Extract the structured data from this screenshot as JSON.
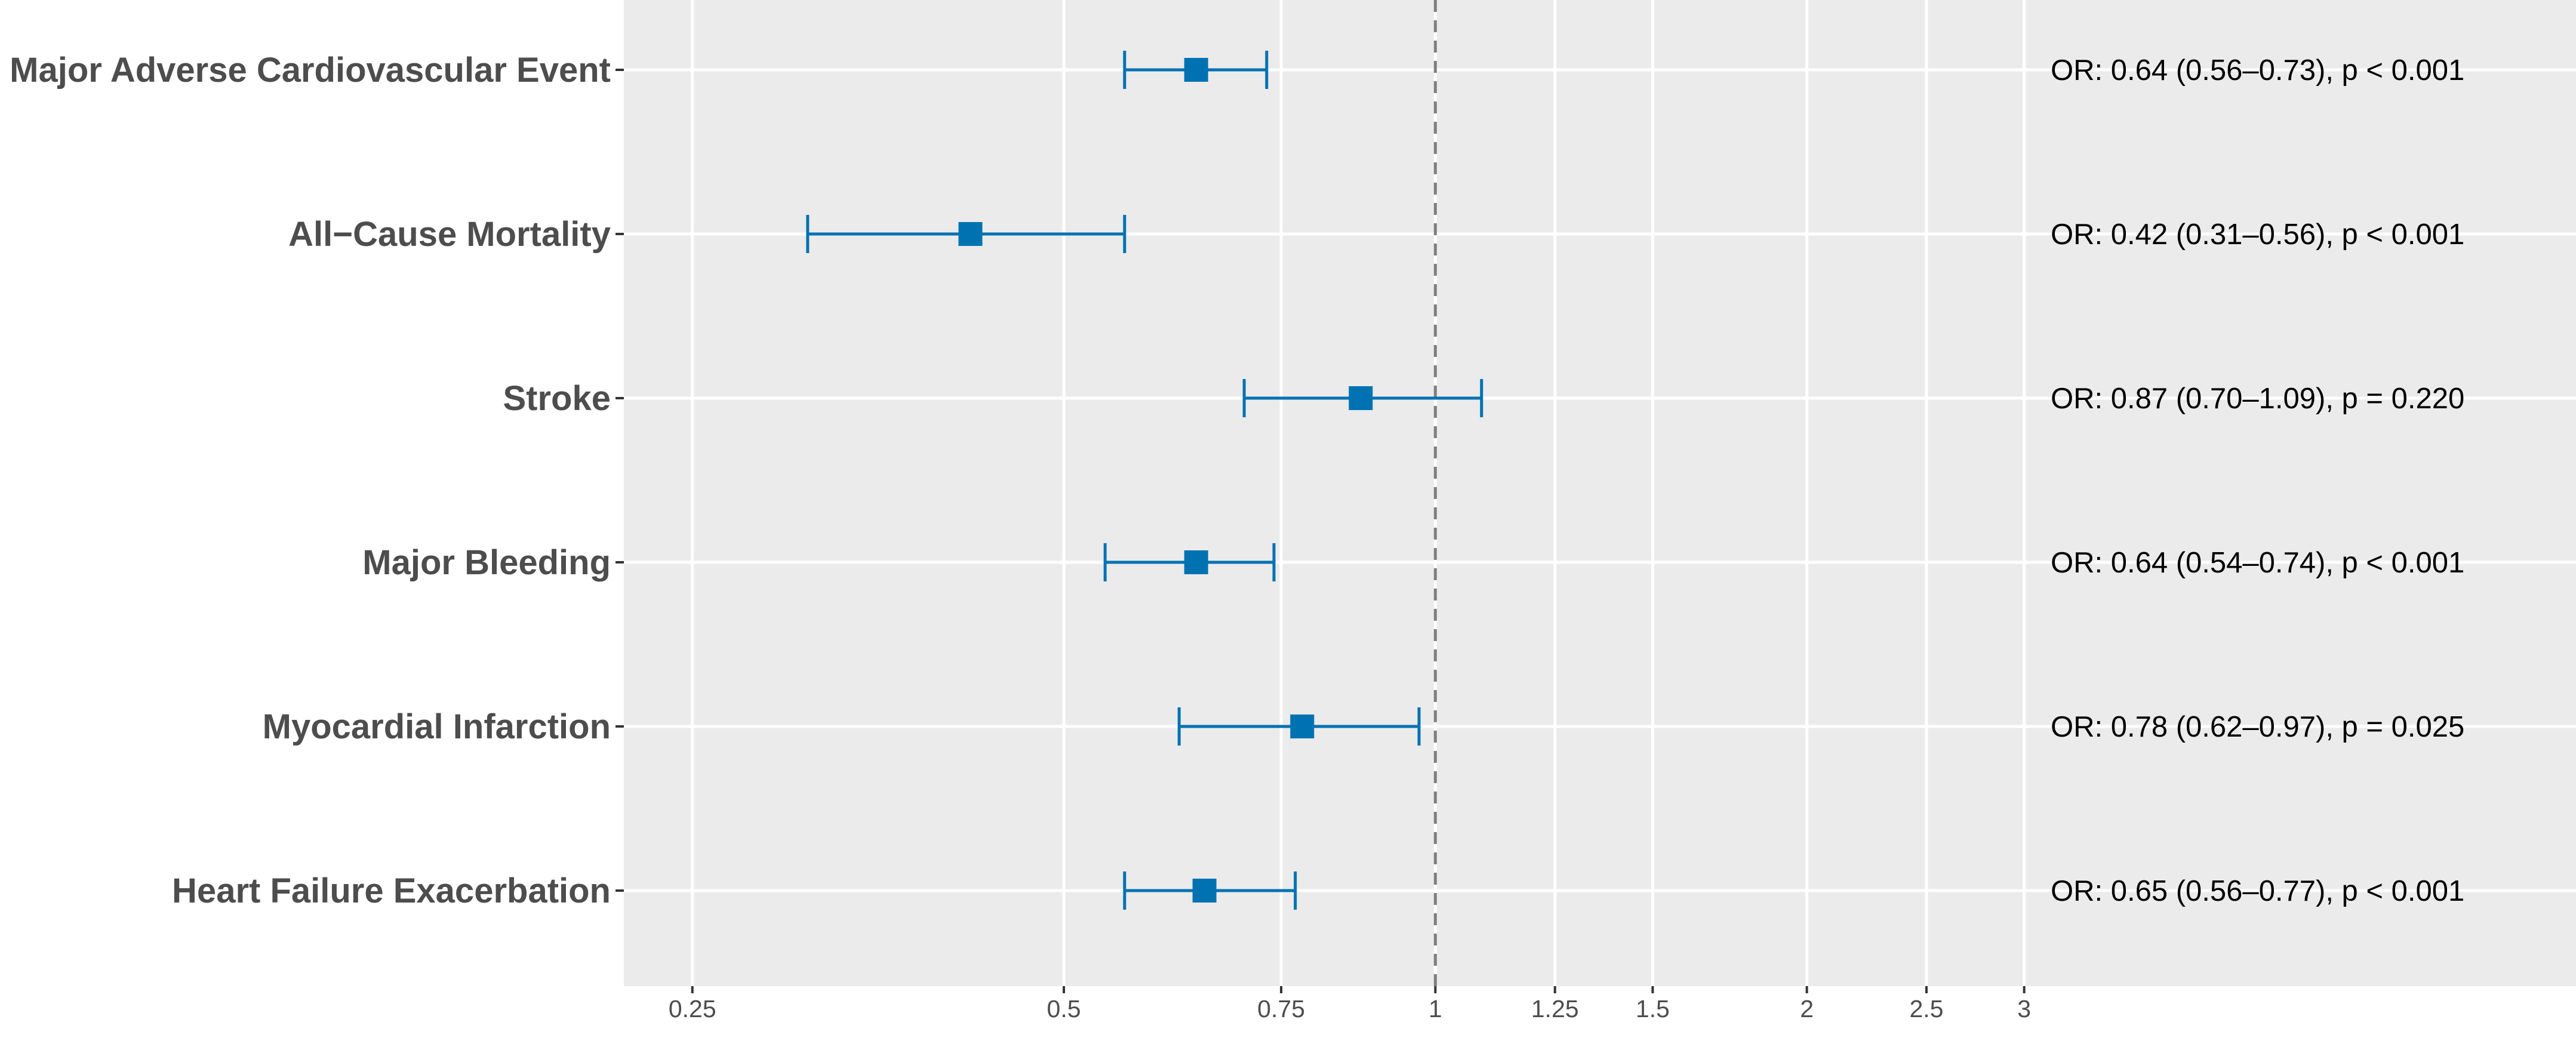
{
  "chart_data": {
    "type": "scatter",
    "subtype": "forest-plot",
    "title": "",
    "xlabel": "",
    "ylabel": "",
    "x_scale": "log",
    "xlim": [
      0.22,
      8.4
    ],
    "x_ticks": [
      0.25,
      0.5,
      0.75,
      1,
      1.25,
      1.5,
      2,
      2.5,
      3
    ],
    "x_tick_labels": [
      "0.25",
      "0.5",
      "0.75",
      "1",
      "1.25",
      "1.5",
      "2",
      "2.5",
      "3"
    ],
    "reference_line": 1,
    "grid": true,
    "legend": "none",
    "colors": {
      "panel": "#ebebeb",
      "grid": "#ffffff",
      "point": "#0072b2",
      "reference": "#7f7f7f",
      "axis_text": "#4d4d4d"
    },
    "rows": [
      {
        "label": "Major Adverse Cardiovascular Event",
        "or": 0.64,
        "lo": 0.56,
        "hi": 0.73,
        "annotation": "OR: 0.64 (0.56–0.73), p < 0.001"
      },
      {
        "label": "All−Cause Mortality",
        "or": 0.42,
        "lo": 0.31,
        "hi": 0.56,
        "annotation": "OR: 0.42 (0.31–0.56), p < 0.001"
      },
      {
        "label": "Stroke",
        "or": 0.87,
        "lo": 0.7,
        "hi": 1.09,
        "annotation": "OR: 0.87 (0.70–1.09), p = 0.220"
      },
      {
        "label": "Major Bleeding",
        "or": 0.64,
        "lo": 0.54,
        "hi": 0.74,
        "annotation": "OR: 0.64 (0.54–0.74), p < 0.001"
      },
      {
        "label": "Myocardial Infarction",
        "or": 0.78,
        "lo": 0.62,
        "hi": 0.97,
        "annotation": "OR: 0.78 (0.62–0.97), p = 0.025"
      },
      {
        "label": "Heart Failure Exacerbation",
        "or": 0.65,
        "lo": 0.56,
        "hi": 0.77,
        "annotation": "OR: 0.65 (0.56–0.77), p < 0.001"
      }
    ]
  }
}
